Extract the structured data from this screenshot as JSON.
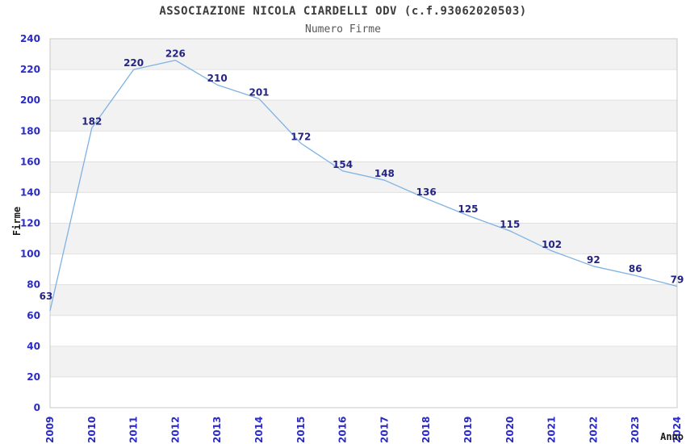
{
  "chart_data": {
    "type": "line",
    "title": "ASSOCIAZIONE NICOLA CIARDELLI ODV (c.f.93062020503)",
    "subtitle": "Numero Firme",
    "xlabel": "Anno",
    "ylabel": "Firme",
    "categories": [
      "2009",
      "2010",
      "2011",
      "2012",
      "2013",
      "2014",
      "2015",
      "2016",
      "2017",
      "2018",
      "2019",
      "2020",
      "2021",
      "2022",
      "2023",
      "2024"
    ],
    "values": [
      63,
      182,
      220,
      226,
      210,
      201,
      172,
      154,
      148,
      136,
      125,
      115,
      102,
      92,
      86,
      79
    ],
    "ylim": [
      0,
      240
    ],
    "ytick_step": 20,
    "grid": "horizontal with alternating shaded bands",
    "legend": "none",
    "data_labels_visible": true,
    "colors": {
      "line": "#7fb2e3",
      "band": "#f2f2f2",
      "grid": "#e0e0e0",
      "frame": "#c8c8c8",
      "tick_label": "#2a2ac8",
      "data_label": "#242482",
      "title": "#3c3c3c",
      "subtitle": "#585858",
      "axis_label": "#1a1a1a"
    }
  }
}
